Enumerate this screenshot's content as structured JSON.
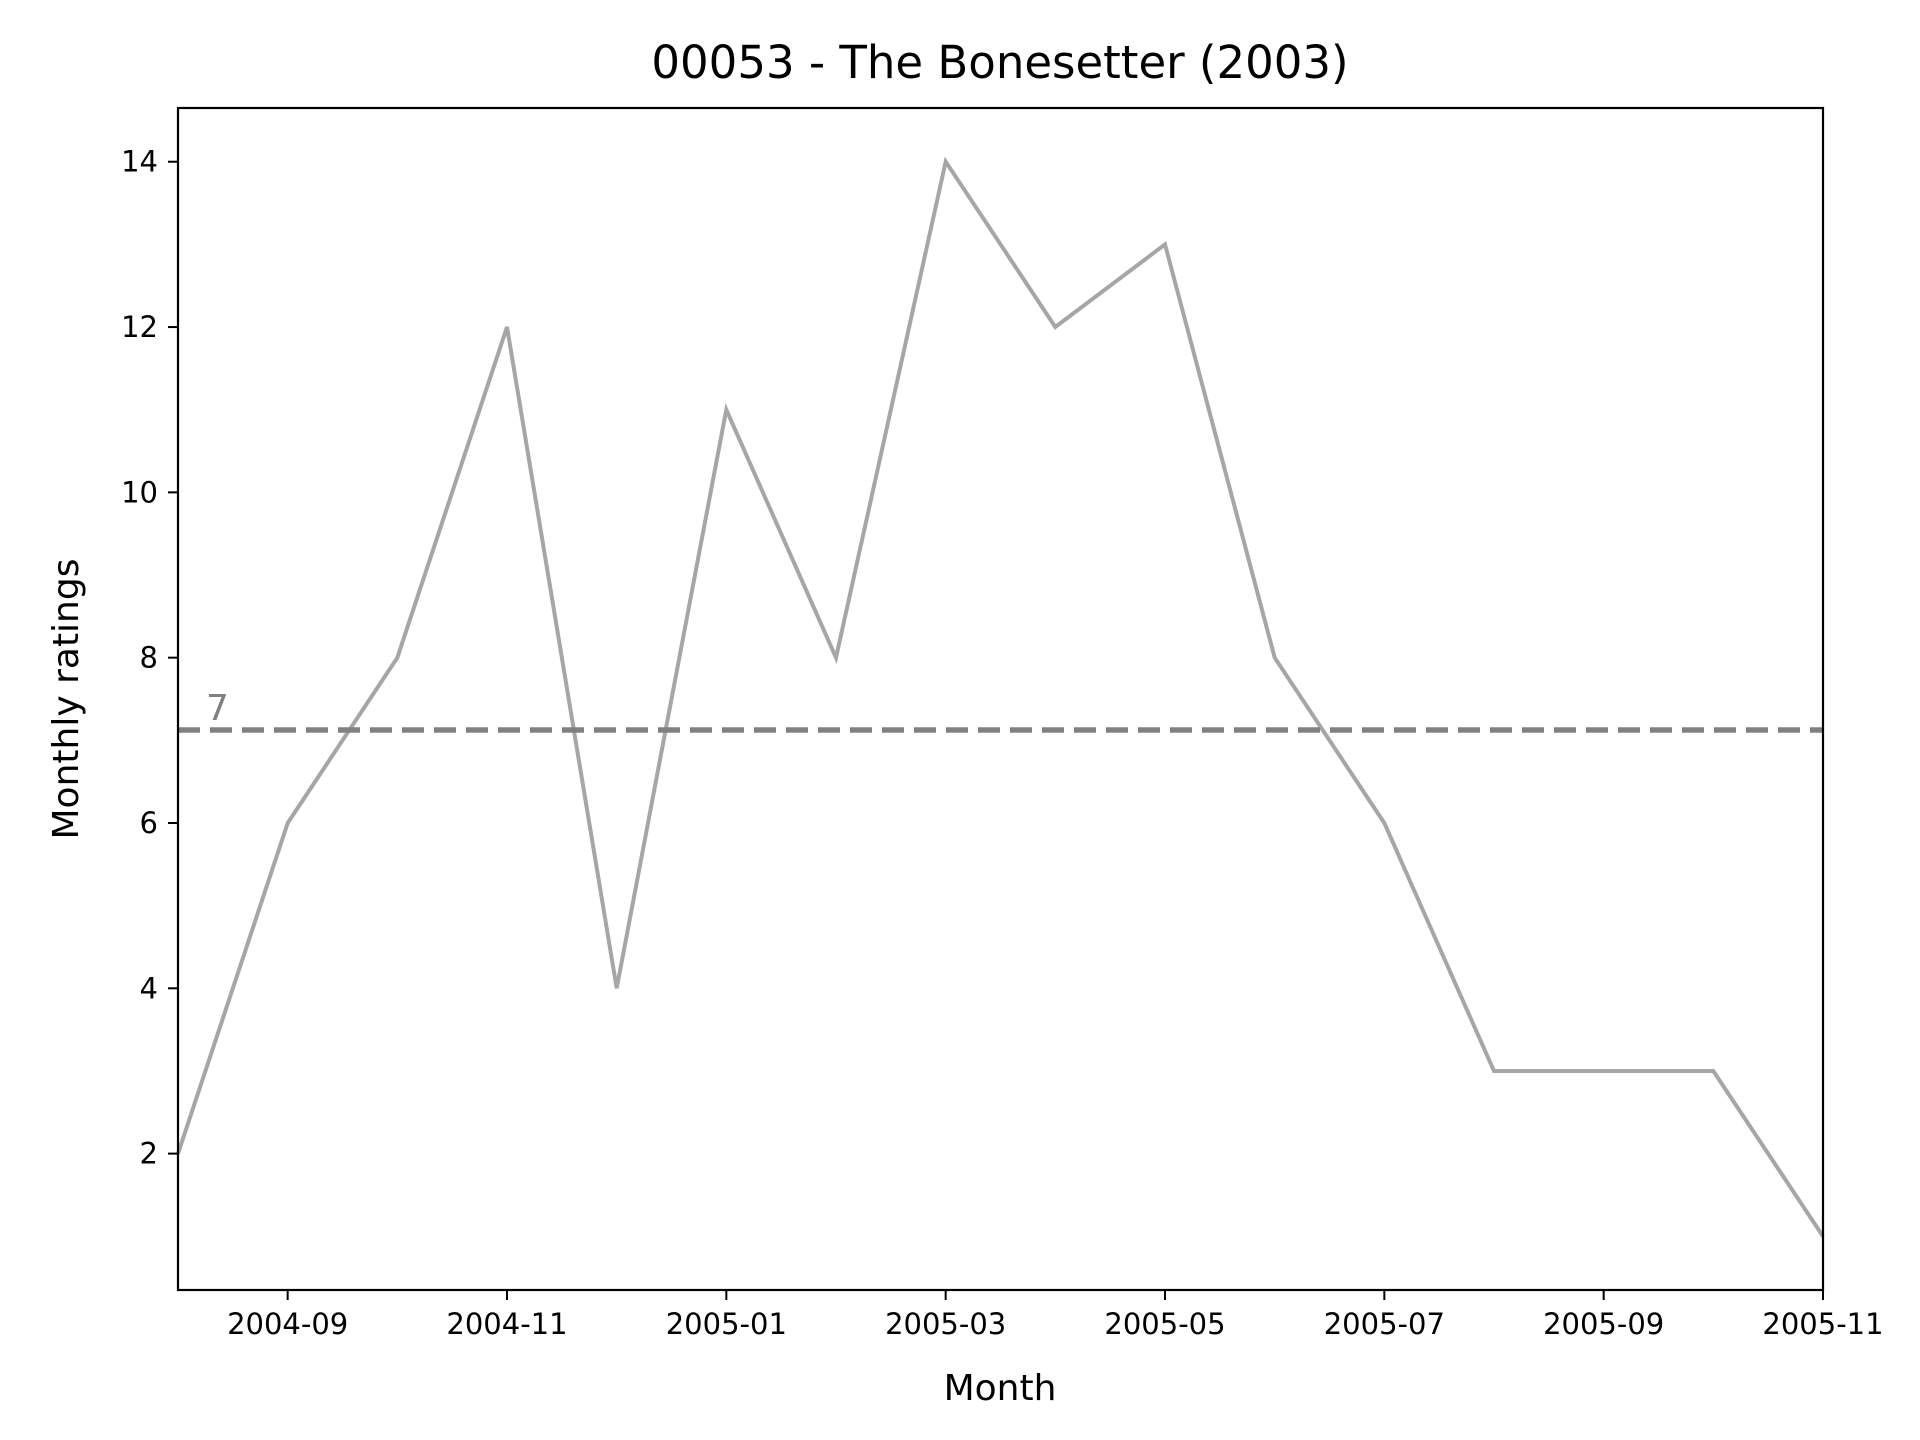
{
  "chart_data": {
    "type": "line",
    "title": "00053 - The Bonesetter (2003)",
    "xlabel": "Month",
    "ylabel": "Monthly ratings",
    "x": [
      "2004-08",
      "2004-09",
      "2004-10",
      "2004-11",
      "2004-12",
      "2005-01",
      "2005-02",
      "2005-03",
      "2005-04",
      "2005-05",
      "2005-06",
      "2005-07",
      "2005-08",
      "2005-09",
      "2005-10",
      "2005-11"
    ],
    "series": [
      {
        "values": [
          2,
          6,
          8,
          12,
          4,
          11,
          8,
          14,
          12,
          13,
          8,
          6,
          3,
          3,
          3,
          1
        ],
        "color": "#a6a6a6"
      }
    ],
    "xticks": [
      "2004-09",
      "2004-11",
      "2005-01",
      "2005-03",
      "2005-05",
      "2005-07",
      "2005-09",
      "2005-11"
    ],
    "yticks": [
      2,
      4,
      6,
      8,
      10,
      12,
      14
    ],
    "xlim": [
      "2004-08",
      "2005-11"
    ],
    "ylim": [
      0.35,
      14.65
    ],
    "reference_line": {
      "value": 7.125,
      "label": "7",
      "style": "dashed",
      "color": "#808080"
    },
    "grid": false,
    "legend": "none"
  }
}
